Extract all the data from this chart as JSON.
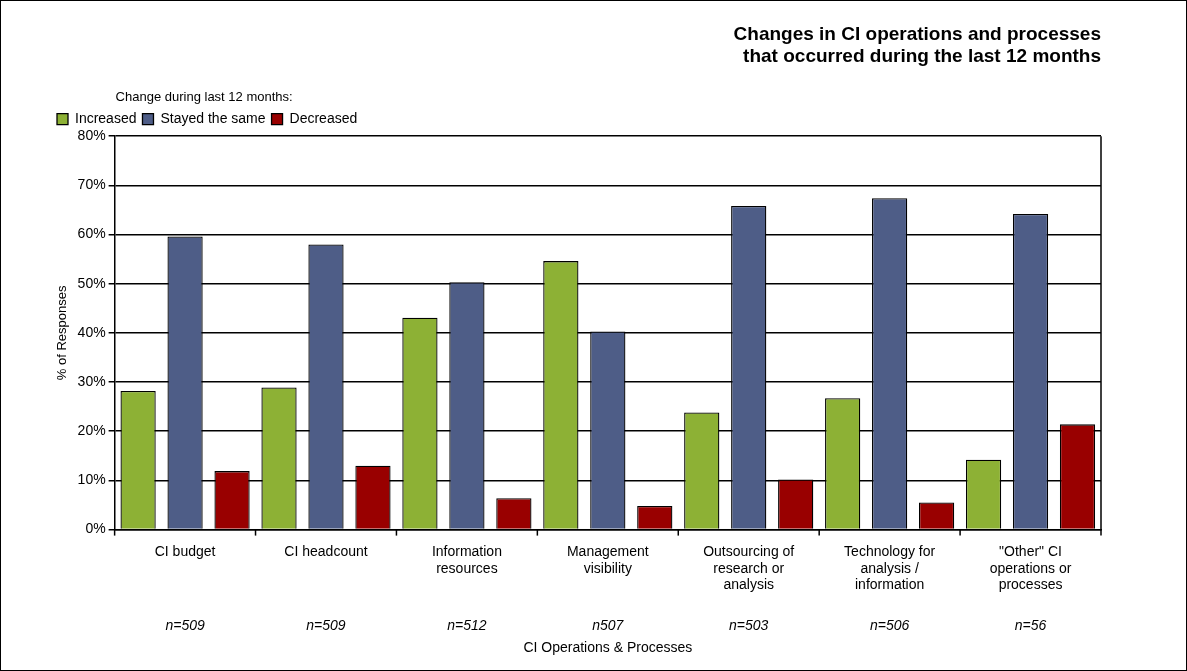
{
  "chart_data": {
    "type": "bar",
    "title": "Changes in CI operations and processes\nthat occurred during the last 12 months",
    "categories": [
      "CI budget",
      "CI headcount",
      "Information resources",
      "Management visibility",
      "Outsourcing of research or analysis",
      "Technology for analysis / information",
      "\"Other\" CI operations or processes"
    ],
    "series": [
      {
        "name": "Increased",
        "color": "#8db135",
        "values": [
          28.2,
          28.9,
          43.1,
          54.6,
          23.8,
          26.7,
          14.2
        ]
      },
      {
        "name": "Stayed the same",
        "color": "#4e5d87",
        "values": [
          59.6,
          58.0,
          50.3,
          40.3,
          65.8,
          67.4,
          64.2
        ]
      },
      {
        "name": "Decreased",
        "color": "#990000",
        "values": [
          11.9,
          13.0,
          6.4,
          4.8,
          10.2,
          5.5,
          21.4
        ]
      }
    ],
    "legend_title": "Change during last 12 months:",
    "legend": "top left",
    "xlabel": "CI Operations & Processes",
    "ylabel": "% of Responses",
    "ylim": [
      0,
      80
    ],
    "yticks": [
      {
        "value": 0,
        "label": "0%"
      },
      {
        "value": 10,
        "label": "10%"
      },
      {
        "value": 20,
        "label": "20%"
      },
      {
        "value": 30,
        "label": "30%"
      },
      {
        "value": 40,
        "label": "40%"
      },
      {
        "value": 50,
        "label": "50%"
      },
      {
        "value": 60,
        "label": "60%"
      },
      {
        "value": 70,
        "label": "70%"
      },
      {
        "value": 80,
        "label": "80%"
      }
    ],
    "grid": "y",
    "annotations": [
      "n=509",
      "n=509",
      "n=512",
      "n507",
      "n=503",
      "n=506",
      "n=56"
    ]
  }
}
